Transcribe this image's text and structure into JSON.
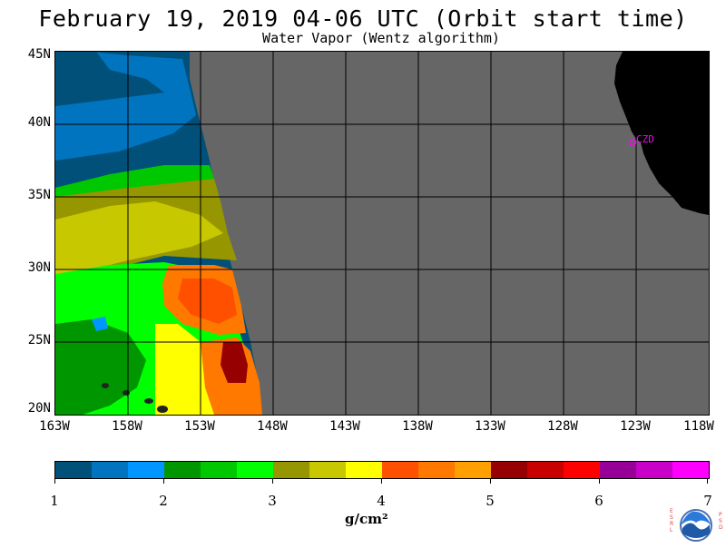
{
  "title": "February 19, 2019  04-06 UTC  (Orbit start time)",
  "subtitle": "Water Vapor (Wentz algorithm)",
  "map": {
    "lat_labels": [
      "45N",
      "40N",
      "35N",
      "30N",
      "25N",
      "20N"
    ],
    "lon_labels": [
      "163W",
      "158W",
      "153W",
      "148W",
      "143W",
      "138W",
      "133W",
      "128W",
      "123W",
      "118W"
    ],
    "station_label": "CZD",
    "colors": {
      "no_data": "#666666",
      "land": "#000000",
      "station": "#ff00ff",
      "grid": "#000000"
    }
  },
  "colorbar": {
    "colors": [
      "#00507a",
      "#0074bf",
      "#0096ff",
      "#009600",
      "#00c800",
      "#00ff00",
      "#969600",
      "#c8c800",
      "#ffff00",
      "#ff5000",
      "#ff7800",
      "#ffa000",
      "#960000",
      "#c80000",
      "#ff0000",
      "#960096",
      "#c800c8",
      "#ff00ff"
    ],
    "tick_labels": [
      "1",
      "2",
      "3",
      "4",
      "5",
      "6",
      "7"
    ],
    "units": "g/cm²"
  },
  "logo": {
    "left_letters": "ESRL",
    "right_letters": "PSD",
    "name": "NOAA"
  }
}
